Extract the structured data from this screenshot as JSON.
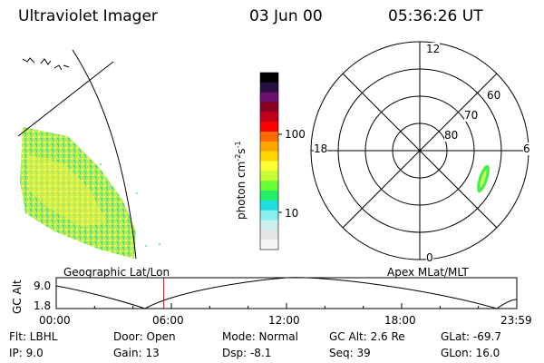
{
  "header": {
    "instrument": "Ultraviolet Imager",
    "date": "03 Jun 00",
    "time": "05:36:26 UT"
  },
  "colorbar": {
    "label": "photon cm",
    "label_sup1": "-2",
    "label_s": "s",
    "label_sup2": "-1",
    "ticks": [
      "100",
      "10"
    ],
    "colors": [
      "#000000",
      "#2a0f45",
      "#6a0f6a",
      "#8a0020",
      "#c2001a",
      "#ff0000",
      "#ff6a00",
      "#ffa500",
      "#ffd400",
      "#ffff33",
      "#c8ff33",
      "#66ff33",
      "#22ee66",
      "#22dddd",
      "#88eeee",
      "#cceeee",
      "#e6e6e6",
      "#f6f6f6"
    ]
  },
  "polar_plot": {
    "hour_labels": [
      "12",
      "18",
      "6",
      "0"
    ],
    "lat_labels": [
      "60",
      "70",
      "80"
    ],
    "feature_color": "#44ee44"
  },
  "timeline": {
    "left_label": "Geographic Lat/Lon",
    "right_label": "Apex MLat/MLT",
    "axis_label": "GC Alt",
    "y_max": "9.0",
    "y_min": "1.8",
    "time_ticks": [
      "00:00",
      "06:00",
      "12:00",
      "18:00",
      "23:59"
    ],
    "marker_time_hours": 5.607,
    "marker_color": "#cc0000"
  },
  "info": {
    "row1": {
      "filter": "Flt: LBHL",
      "door": "Door: Open",
      "mode": "Mode: Normal",
      "gc_alt": "GC Alt: 2.6 Re",
      "glat": "GLat: -69.7"
    },
    "row2": {
      "ip": "IP: 9.0",
      "gain": "Gain: 13",
      "dsp": "Dsp: -8.1",
      "seq": "Seq: 39",
      "glon": "GLon: 16.0"
    }
  }
}
